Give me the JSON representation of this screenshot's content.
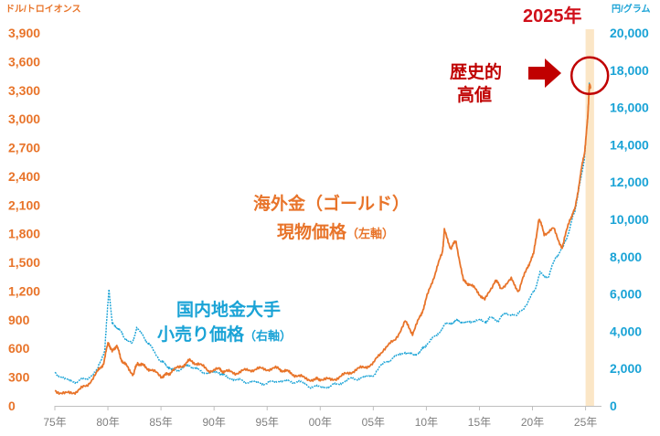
{
  "chart_data": {
    "type": "line",
    "left_axis": {
      "unit": "ドル/トロイオンス",
      "ylim": [
        0,
        3900
      ],
      "ticks": [
        "0",
        "300",
        "600",
        "900",
        "1,200",
        "1,500",
        "1,800",
        "2,100",
        "2,400",
        "2,700",
        "3,000",
        "3,300",
        "3,600",
        "3,900"
      ]
    },
    "right_axis": {
      "unit": "円/グラム",
      "ylim": [
        0,
        20000
      ],
      "ticks": [
        "0",
        "2,000",
        "4,000",
        "6,000",
        "8,000",
        "10,000",
        "12,000",
        "14,000",
        "16,000",
        "18,000",
        "20,000"
      ]
    },
    "x_axis": {
      "xlim": [
        1975,
        2026.5
      ],
      "ticks": [
        {
          "x": 1975,
          "label": "75年"
        },
        {
          "x": 1980,
          "label": "80年"
        },
        {
          "x": 1985,
          "label": "85年"
        },
        {
          "x": 1990,
          "label": "90年"
        },
        {
          "x": 1995,
          "label": "95年"
        },
        {
          "x": 2000,
          "label": "00年"
        },
        {
          "x": 2005,
          "label": "05年"
        },
        {
          "x": 2010,
          "label": "10年"
        },
        {
          "x": 2015,
          "label": "15年"
        },
        {
          "x": 2020,
          "label": "20年"
        },
        {
          "x": 2025,
          "label": "25年"
        }
      ]
    },
    "highlight": {
      "x_start": 2025,
      "x_end": 2025.8,
      "color": "#fbe6c6"
    },
    "annotations": {
      "year_label": "2025年",
      "record_label_line1": "歴史的",
      "record_label_line2": "高値",
      "record_point": {
        "x": 2025.4,
        "y_left": 3300
      }
    },
    "series": [
      {
        "name": "海外金（ゴールド）現物価格",
        "name_line1": "海外金（ゴールド）",
        "name_line2": "現物価格",
        "axis_note": "（左軸）",
        "axis": "left",
        "color": "#e8742a",
        "points": [
          [
            1975,
            160
          ],
          [
            1976,
            125
          ],
          [
            1977,
            150
          ],
          [
            1978,
            210
          ],
          [
            1979,
            350
          ],
          [
            1979.6,
            450
          ],
          [
            1980.05,
            670
          ],
          [
            1980.4,
            560
          ],
          [
            1980.8,
            640
          ],
          [
            1981.2,
            500
          ],
          [
            1981.7,
            420
          ],
          [
            1982.4,
            330
          ],
          [
            1982.8,
            450
          ],
          [
            1983.3,
            420
          ],
          [
            1984,
            380
          ],
          [
            1985,
            310
          ],
          [
            1985.5,
            320
          ],
          [
            1986,
            360
          ],
          [
            1987,
            420
          ],
          [
            1987.7,
            470
          ],
          [
            1988.5,
            440
          ],
          [
            1989.5,
            370
          ],
          [
            1990.5,
            380
          ],
          [
            1991,
            360
          ],
          [
            1992,
            345
          ],
          [
            1993,
            370
          ],
          [
            1994,
            385
          ],
          [
            1995,
            385
          ],
          [
            1996,
            390
          ],
          [
            1996.7,
            365
          ],
          [
            1997.5,
            330
          ],
          [
            1998.5,
            290
          ],
          [
            1999.5,
            270
          ],
          [
            2000,
            285
          ],
          [
            2001,
            270
          ],
          [
            2002,
            310
          ],
          [
            2003,
            360
          ],
          [
            2004,
            400
          ],
          [
            2005,
            440
          ],
          [
            2006,
            600
          ],
          [
            2007,
            680
          ],
          [
            2008,
            880
          ],
          [
            2008.7,
            760
          ],
          [
            2009.5,
            950
          ],
          [
            2010,
            1120
          ],
          [
            2010.8,
            1380
          ],
          [
            2011.5,
            1600
          ],
          [
            2011.7,
            1830
          ],
          [
            2012.3,
            1650
          ],
          [
            2012.8,
            1720
          ],
          [
            2013.5,
            1300
          ],
          [
            2014,
            1280
          ],
          [
            2014.8,
            1200
          ],
          [
            2015.5,
            1100
          ],
          [
            2016.5,
            1320
          ],
          [
            2017,
            1230
          ],
          [
            2018,
            1320
          ],
          [
            2018.7,
            1200
          ],
          [
            2019.5,
            1450
          ],
          [
            2020.1,
            1580
          ],
          [
            2020.6,
            1960
          ],
          [
            2021.1,
            1800
          ],
          [
            2022,
            1850
          ],
          [
            2022.8,
            1650
          ],
          [
            2023.5,
            1950
          ],
          [
            2024,
            2050
          ],
          [
            2024.5,
            2400
          ],
          [
            2024.9,
            2650
          ],
          [
            2025.2,
            3000
          ],
          [
            2025.35,
            3350
          ],
          [
            2025.5,
            3320
          ]
        ]
      },
      {
        "name": "国内地金大手小売り価格",
        "name_line1": "国内地金大手",
        "name_line2": "小売り価格",
        "axis_note": "（右軸）",
        "axis": "right",
        "color": "#1aa3d6",
        "points": [
          [
            1975,
            1800
          ],
          [
            1976,
            1400
          ],
          [
            1977,
            1300
          ],
          [
            1978,
            1450
          ],
          [
            1979,
            1900
          ],
          [
            1979.7,
            3000
          ],
          [
            1980.1,
            6300
          ],
          [
            1980.4,
            4400
          ],
          [
            1980.9,
            4200
          ],
          [
            1981.5,
            3700
          ],
          [
            1982.3,
            3300
          ],
          [
            1982.7,
            4200
          ],
          [
            1983.5,
            3600
          ],
          [
            1984,
            3200
          ],
          [
            1985,
            2400
          ],
          [
            1985.5,
            2200
          ],
          [
            1986,
            1900
          ],
          [
            1987,
            2000
          ],
          [
            1987.7,
            2200
          ],
          [
            1988.5,
            1900
          ],
          [
            1989.5,
            1750
          ],
          [
            1990.5,
            1800
          ],
          [
            1991,
            1600
          ],
          [
            1992,
            1400
          ],
          [
            1993,
            1300
          ],
          [
            1994,
            1250
          ],
          [
            1995,
            1200
          ],
          [
            1996,
            1350
          ],
          [
            1997,
            1300
          ],
          [
            1998,
            1300
          ],
          [
            1999,
            1050
          ],
          [
            2000,
            1000
          ],
          [
            2001,
            1050
          ],
          [
            2002,
            1250
          ],
          [
            2003,
            1450
          ],
          [
            2004,
            1500
          ],
          [
            2005,
            1650
          ],
          [
            2006,
            2300
          ],
          [
            2007,
            2600
          ],
          [
            2008,
            2900
          ],
          [
            2008.8,
            2700
          ],
          [
            2009.5,
            2950
          ],
          [
            2010,
            3300
          ],
          [
            2011,
            3800
          ],
          [
            2011.7,
            4300
          ],
          [
            2012.5,
            4500
          ],
          [
            2013,
            4600
          ],
          [
            2013.7,
            4400
          ],
          [
            2014.5,
            4600
          ],
          [
            2015.5,
            4500
          ],
          [
            2016,
            4700
          ],
          [
            2016.8,
            4600
          ],
          [
            2017.5,
            5000
          ],
          [
            2018.5,
            4800
          ],
          [
            2019.5,
            5500
          ],
          [
            2020.2,
            6200
          ],
          [
            2020.7,
            7100
          ],
          [
            2021.5,
            6900
          ],
          [
            2022.2,
            8000
          ],
          [
            2022.9,
            8500
          ],
          [
            2023.5,
            9500
          ],
          [
            2024,
            10500
          ],
          [
            2024.5,
            12000
          ],
          [
            2024.9,
            13300
          ],
          [
            2025.2,
            15500
          ],
          [
            2025.35,
            17200
          ],
          [
            2025.5,
            17100
          ]
        ]
      }
    ]
  }
}
